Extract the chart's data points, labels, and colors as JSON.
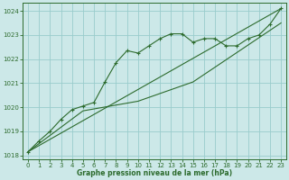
{
  "xlabel": "Graphe pression niveau de la mer (hPa)",
  "bg_color": "#cce8e8",
  "grid_color": "#99cccc",
  "line_color": "#2d6b2d",
  "ylim": [
    1017.85,
    1024.35
  ],
  "xlim": [
    -0.5,
    23.5
  ],
  "yticks": [
    1018,
    1019,
    1020,
    1021,
    1022,
    1023,
    1024
  ],
  "xticks": [
    0,
    1,
    2,
    3,
    4,
    5,
    6,
    7,
    8,
    9,
    10,
    11,
    12,
    13,
    14,
    15,
    16,
    17,
    18,
    19,
    20,
    21,
    22,
    23
  ],
  "series_marker": {
    "x": [
      0,
      1,
      2,
      3,
      4,
      5,
      6,
      7,
      8,
      9,
      10,
      11,
      12,
      13,
      14,
      15,
      16,
      17,
      18,
      19,
      20,
      21,
      22,
      23
    ],
    "y": [
      1018.15,
      1018.6,
      1019.0,
      1019.5,
      1019.9,
      1020.05,
      1020.2,
      1021.05,
      1021.85,
      1022.35,
      1022.25,
      1022.55,
      1022.85,
      1023.05,
      1023.05,
      1022.7,
      1022.85,
      1022.85,
      1022.55,
      1022.55,
      1022.85,
      1023.0,
      1023.45,
      1024.1
    ]
  },
  "series_line1": {
    "x": [
      0,
      23
    ],
    "y": [
      1018.15,
      1024.1
    ]
  },
  "series_line2": {
    "x": [
      0,
      5,
      10,
      15,
      23
    ],
    "y": [
      1018.15,
      1019.85,
      1020.25,
      1021.05,
      1023.5
    ]
  }
}
